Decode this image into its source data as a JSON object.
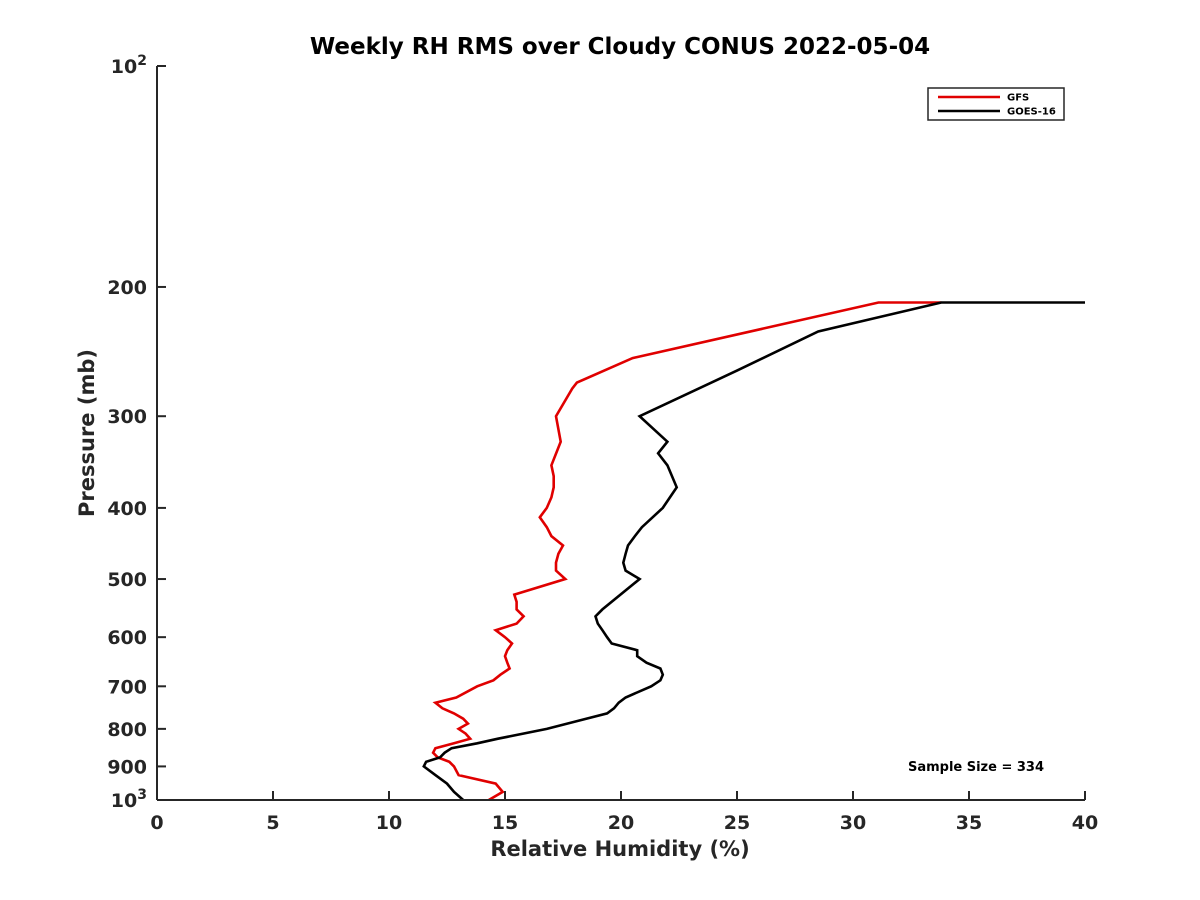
{
  "chart_data": {
    "type": "line",
    "title": "Weekly RH RMS over Cloudy CONUS 2022-05-04",
    "xlabel": "Relative Humidity (%)",
    "ylabel": "Pressure (mb)",
    "xlim": [
      0,
      40
    ],
    "ylim": [
      100,
      1000
    ],
    "y_scale": "log",
    "y_reversed": true,
    "x_ticks": [
      "0",
      "5",
      "10",
      "15",
      "20",
      "25",
      "30",
      "35",
      "40"
    ],
    "y_ticks": [
      {
        "value": 100,
        "base": "10",
        "exp": "2"
      },
      {
        "value": 200,
        "label": "200"
      },
      {
        "value": 300,
        "label": "300"
      },
      {
        "value": 400,
        "label": "400"
      },
      {
        "value": 500,
        "label": "500"
      },
      {
        "value": 600,
        "label": "600"
      },
      {
        "value": 700,
        "label": "700"
      },
      {
        "value": 800,
        "label": "800"
      },
      {
        "value": 900,
        "label": "900"
      },
      {
        "value": 1000,
        "base": "10",
        "exp": "3"
      }
    ],
    "legend_position": "top-right",
    "annotation": "Sample Size = 334",
    "series": [
      {
        "name": "GFS",
        "color": "#e00000",
        "points": [
          [
            14.3,
            1000
          ],
          [
            14.9,
            975
          ],
          [
            14.6,
            950
          ],
          [
            13.0,
            925
          ],
          [
            12.8,
            900
          ],
          [
            12.6,
            887
          ],
          [
            12.1,
            875
          ],
          [
            11.9,
            862
          ],
          [
            12.0,
            850
          ],
          [
            12.8,
            837
          ],
          [
            13.5,
            825
          ],
          [
            13.3,
            812
          ],
          [
            13.0,
            800
          ],
          [
            13.4,
            787
          ],
          [
            13.2,
            775
          ],
          [
            12.8,
            762
          ],
          [
            12.3,
            750
          ],
          [
            12.0,
            737
          ],
          [
            12.9,
            725
          ],
          [
            13.8,
            700
          ],
          [
            14.5,
            687
          ],
          [
            14.8,
            675
          ],
          [
            15.2,
            662
          ],
          [
            15.1,
            650
          ],
          [
            15.0,
            637
          ],
          [
            15.1,
            625
          ],
          [
            15.3,
            612
          ],
          [
            15.0,
            600
          ],
          [
            14.6,
            587
          ],
          [
            15.5,
            575
          ],
          [
            15.8,
            562
          ],
          [
            15.5,
            550
          ],
          [
            15.5,
            537
          ],
          [
            15.4,
            525
          ],
          [
            17.6,
            500
          ],
          [
            17.2,
            487
          ],
          [
            17.2,
            475
          ],
          [
            17.3,
            462
          ],
          [
            17.5,
            450
          ],
          [
            17.0,
            437
          ],
          [
            16.8,
            425
          ],
          [
            16.5,
            412
          ],
          [
            16.8,
            400
          ],
          [
            17.0,
            387
          ],
          [
            17.1,
            375
          ],
          [
            17.1,
            362
          ],
          [
            17.0,
            350
          ],
          [
            17.4,
            325
          ],
          [
            17.2,
            300
          ],
          [
            17.9,
            275
          ],
          [
            18.1,
            270
          ],
          [
            20.5,
            250
          ],
          [
            31.1,
            210
          ],
          [
            33.8,
            210
          ]
        ]
      },
      {
        "name": "GOES-16",
        "color": "#000000",
        "points": [
          [
            13.2,
            1000
          ],
          [
            12.8,
            975
          ],
          [
            12.5,
            950
          ],
          [
            12.0,
            925
          ],
          [
            11.5,
            900
          ],
          [
            11.6,
            887
          ],
          [
            12.2,
            875
          ],
          [
            12.4,
            862
          ],
          [
            12.7,
            850
          ],
          [
            13.8,
            837
          ],
          [
            14.7,
            825
          ],
          [
            16.8,
            800
          ],
          [
            18.5,
            775
          ],
          [
            19.4,
            762
          ],
          [
            19.7,
            750
          ],
          [
            19.9,
            737
          ],
          [
            20.2,
            725
          ],
          [
            21.3,
            700
          ],
          [
            21.7,
            687
          ],
          [
            21.8,
            675
          ],
          [
            21.7,
            662
          ],
          [
            21.1,
            650
          ],
          [
            20.7,
            637
          ],
          [
            20.7,
            625
          ],
          [
            19.6,
            612
          ],
          [
            19.4,
            600
          ],
          [
            19.2,
            587
          ],
          [
            19.0,
            575
          ],
          [
            18.9,
            562
          ],
          [
            19.2,
            550
          ],
          [
            20.8,
            500
          ],
          [
            20.2,
            487
          ],
          [
            20.1,
            475
          ],
          [
            20.2,
            462
          ],
          [
            20.3,
            450
          ],
          [
            20.6,
            437
          ],
          [
            20.9,
            425
          ],
          [
            21.8,
            400
          ],
          [
            22.4,
            375
          ],
          [
            22.0,
            350
          ],
          [
            21.6,
            337
          ],
          [
            22.0,
            325
          ],
          [
            20.8,
            300
          ],
          [
            25.0,
            260
          ],
          [
            28.5,
            230
          ],
          [
            33.8,
            210
          ],
          [
            40.0,
            210
          ]
        ]
      }
    ]
  }
}
